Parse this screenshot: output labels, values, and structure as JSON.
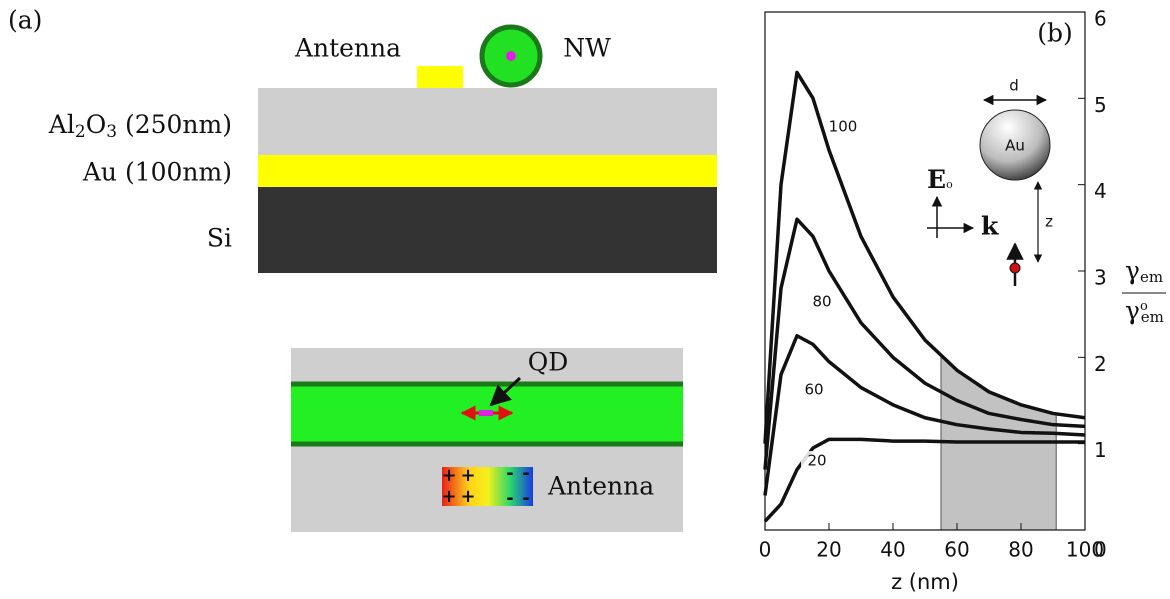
{
  "panel_a": {
    "label": "(a)",
    "antenna_label": "Antenna",
    "nanowire_label": "NW",
    "layers": [
      {
        "parts": [
          "Al",
          "2",
          "O",
          "3",
          " (250nm)"
        ]
      },
      {
        "label": "Au (100nm)"
      },
      {
        "label": "Si"
      }
    ],
    "qd_label": "QD",
    "lower_antenna_label": "Antenna",
    "charges": [
      "+",
      "-"
    ]
  },
  "chart_data": {
    "type": "line",
    "panel_label": "(b)",
    "x": [
      0,
      5,
      10,
      15,
      20,
      30,
      40,
      50,
      60,
      70,
      80,
      90,
      100
    ],
    "series": [
      {
        "name": "100",
        "color": "#111111",
        "values": [
          1.0,
          4.0,
          5.3,
          5.0,
          4.4,
          3.4,
          2.7,
          2.2,
          1.85,
          1.6,
          1.45,
          1.35,
          1.3
        ]
      },
      {
        "name": "80",
        "color": "#111111",
        "values": [
          0.7,
          2.8,
          3.6,
          3.4,
          3.0,
          2.4,
          2.0,
          1.7,
          1.5,
          1.35,
          1.28,
          1.22,
          1.2
        ]
      },
      {
        "name": "60",
        "color": "#111111",
        "values": [
          0.4,
          1.8,
          2.25,
          2.15,
          1.95,
          1.65,
          1.45,
          1.3,
          1.22,
          1.17,
          1.13,
          1.12,
          1.1
        ]
      },
      {
        "name": "20",
        "color": "#111111",
        "values": [
          0.1,
          0.3,
          0.7,
          0.95,
          1.05,
          1.05,
          1.03,
          1.03,
          1.02,
          1.02,
          1.02,
          1.02,
          1.02
        ]
      }
    ],
    "xlim": [
      0,
      100
    ],
    "ylim": [
      0,
      6
    ],
    "xticks": [
      0,
      20,
      40,
      60,
      80,
      100
    ],
    "yticks": [
      0,
      1,
      2,
      3,
      4,
      5,
      6
    ],
    "xlabel": "z (nm)",
    "ylabel": {
      "numerator": [
        "γ",
        "em"
      ],
      "denominator": [
        "γ",
        "o",
        "em"
      ]
    },
    "highlight_x": [
      55,
      91
    ],
    "inset": {
      "diameter_label": "d",
      "particle_label": "Au",
      "field_label": [
        "E",
        "o"
      ],
      "wavevector_label": "k",
      "distance_label": "z"
    }
  }
}
